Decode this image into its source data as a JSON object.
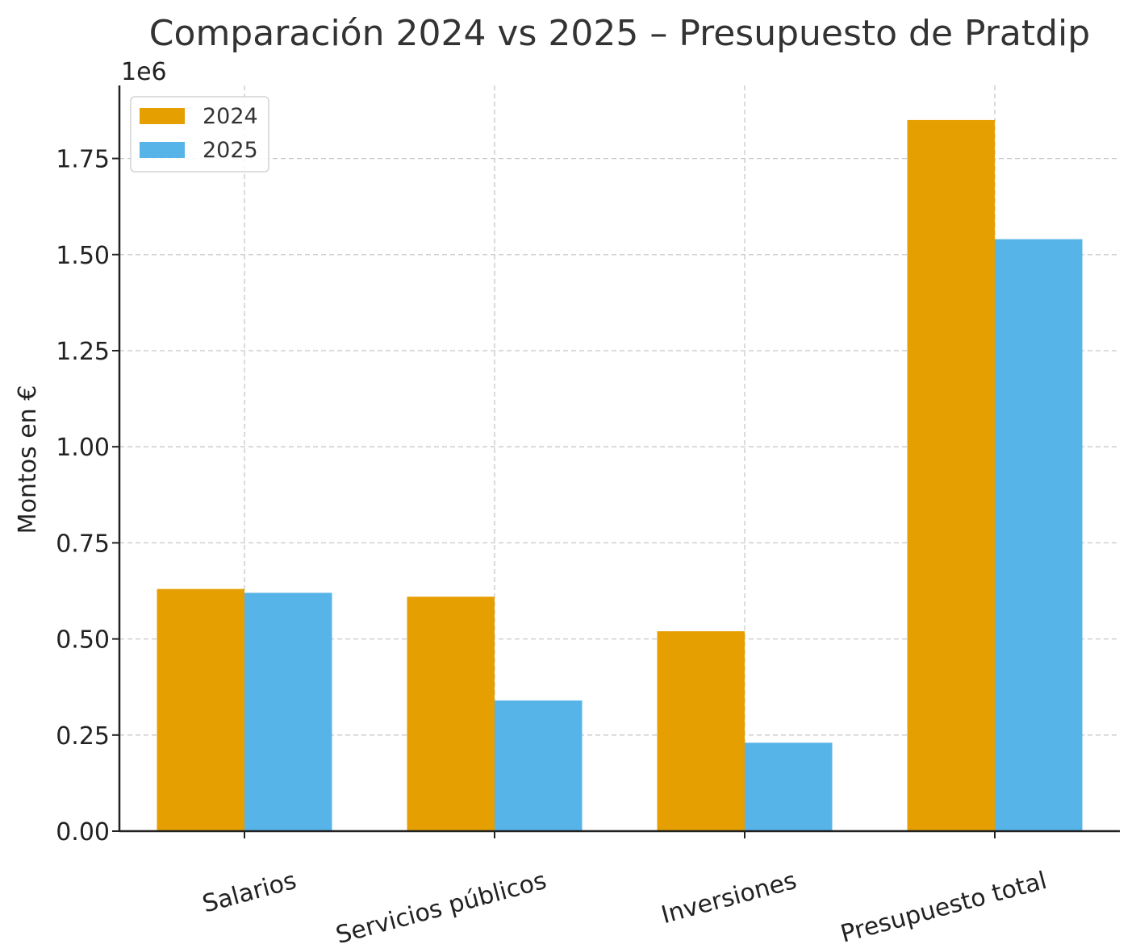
{
  "chart_data": {
    "type": "bar",
    "title": "Comparación 2024 vs 2025 – Presupuesto de Pratdip",
    "xlabel": "",
    "ylabel": "Montos en €",
    "y_offset_label": "1e6",
    "categories": [
      "Salarios",
      "Servicios públicos",
      "Inversiones",
      "Presupuesto total"
    ],
    "series": [
      {
        "name": "2024",
        "color": "#E69F00",
        "values": [
          630000,
          610000,
          520000,
          1850000
        ]
      },
      {
        "name": "2025",
        "color": "#56B4E9",
        "values": [
          620000,
          340000,
          230000,
          1540000
        ]
      }
    ],
    "ylim": [
      0,
      1940000
    ],
    "yticks": [
      0,
      250000,
      500000,
      750000,
      1000000,
      1250000,
      1500000,
      1750000
    ],
    "ytick_labels": [
      "0.00",
      "0.25",
      "0.50",
      "0.75",
      "1.00",
      "1.25",
      "1.50",
      "1.75"
    ],
    "grid": true,
    "legend_position": "top-left"
  }
}
